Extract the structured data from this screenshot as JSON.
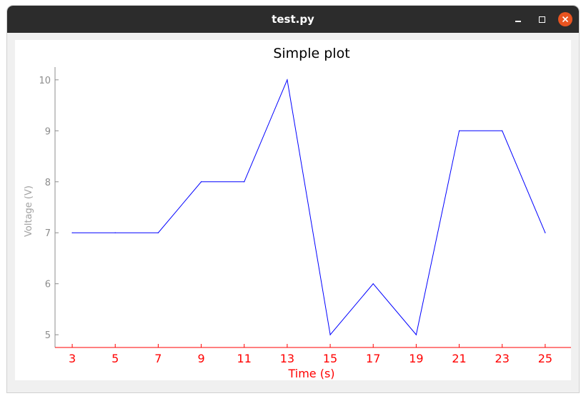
{
  "window": {
    "title": "test.py",
    "minimize_icon": "minimize-icon",
    "maximize_icon": "maximize-icon",
    "close_icon": "close-icon",
    "close_color": "#e95420"
  },
  "chart_data": {
    "type": "line",
    "title": "Simple plot",
    "xlabel": "Time (s)",
    "ylabel": "Voltage (V)",
    "x": [
      3,
      5,
      7,
      9,
      11,
      13,
      15,
      17,
      19,
      21,
      23,
      25
    ],
    "xticks": [
      3,
      5,
      7,
      9,
      11,
      13,
      15,
      17,
      19,
      21,
      23,
      25
    ],
    "yticks": [
      5,
      6,
      7,
      8,
      9,
      10
    ],
    "xlim": [
      2.2,
      26.2
    ],
    "ylim": [
      4.75,
      10.25
    ],
    "grid": false,
    "series": [
      {
        "values": [
          7,
          7,
          7,
          8,
          8,
          10,
          5,
          6,
          5,
          9,
          9,
          7
        ],
        "color": "#0000ff"
      }
    ],
    "colors": {
      "x_axis": "#ff0000",
      "y_axis": "#8c8c8c",
      "title": "#000000"
    }
  }
}
